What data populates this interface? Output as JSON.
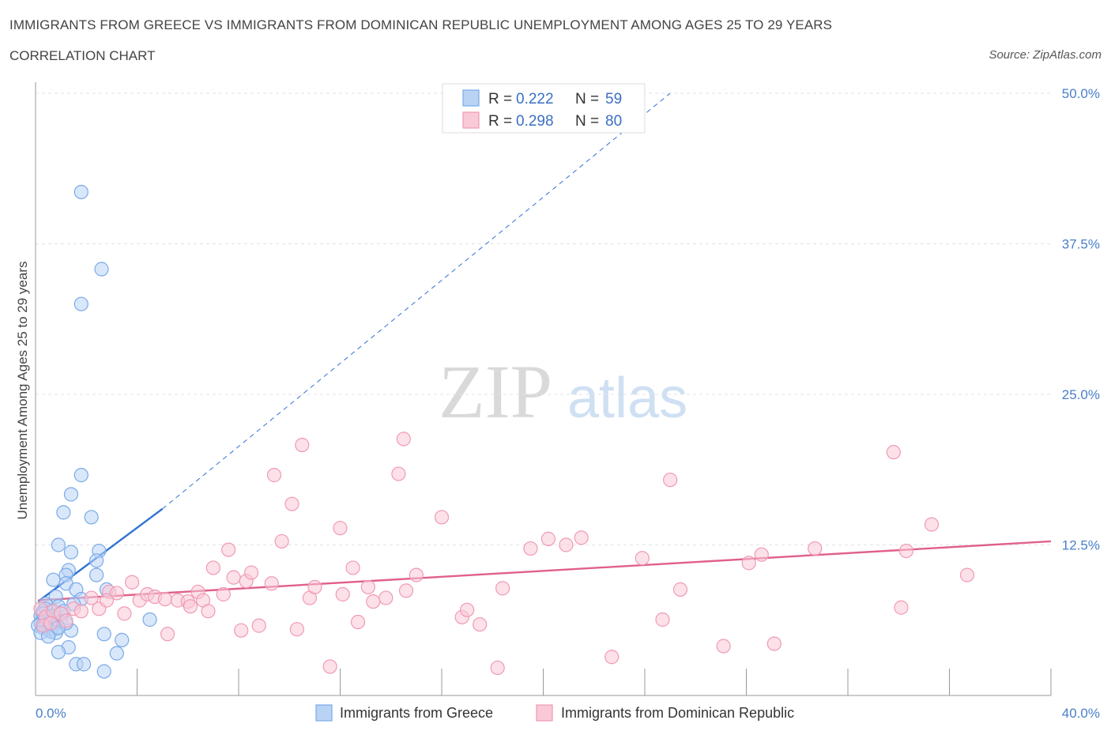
{
  "header": {
    "title": "IMMIGRANTS FROM GREECE VS IMMIGRANTS FROM DOMINICAN REPUBLIC UNEMPLOYMENT AMONG AGES 25 TO 29 YEARS",
    "subtitle": "CORRELATION CHART",
    "source": "Source: ZipAtlas.com"
  },
  "watermark": {
    "zip": "ZIP",
    "atlas": "atlas"
  },
  "legend": {
    "rows": [
      {
        "r_label": "R = ",
        "r_value": "0.222",
        "n_label": "N = ",
        "n_value": "59"
      },
      {
        "r_label": "R = ",
        "r_value": "0.298",
        "n_label": "N = ",
        "n_value": "80"
      }
    ]
  },
  "chart_data": {
    "type": "scatter",
    "title": "IMMIGRANTS FROM GREECE VS IMMIGRANTS FROM DOMINICAN REPUBLIC UNEMPLOYMENT AMONG AGES 25 TO 29 YEARS",
    "xlabel": "",
    "ylabel": "Unemployment Among Ages 25 to 29 years",
    "xlim": [
      0,
      40
    ],
    "ylim": [
      0,
      50
    ],
    "x_tick_labels": [
      "0.0%",
      "40.0%"
    ],
    "y_ticks": [
      12.5,
      25.0,
      37.5,
      50.0
    ],
    "y_tick_labels": [
      "12.5%",
      "25.0%",
      "37.5%",
      "50.0%"
    ],
    "legend_labels": [
      "Immigrants from Greece",
      "Immigrants from Dominican Republic"
    ],
    "series": [
      {
        "name": "Immigrants from Greece",
        "color": "#7aaae8",
        "fill": "#b9d3f5",
        "line_color": "#2f72d4",
        "trend": {
          "x0": 0.1,
          "y0": 7.8,
          "x1": 5.0,
          "y1": 15.5,
          "dash_x1": 25.0,
          "dash_y1": 50.0
        },
        "points": [
          [
            1.8,
            41.8
          ],
          [
            2.6,
            35.4
          ],
          [
            1.8,
            32.5
          ],
          [
            1.8,
            18.3
          ],
          [
            1.4,
            16.7
          ],
          [
            1.1,
            15.2
          ],
          [
            2.2,
            14.8
          ],
          [
            0.9,
            12.5
          ],
          [
            1.4,
            11.9
          ],
          [
            2.5,
            12.0
          ],
          [
            2.4,
            11.2
          ],
          [
            1.3,
            10.4
          ],
          [
            1.2,
            10.0
          ],
          [
            2.4,
            10.0
          ],
          [
            0.7,
            9.6
          ],
          [
            1.2,
            9.3
          ],
          [
            1.6,
            8.8
          ],
          [
            2.8,
            8.8
          ],
          [
            0.8,
            8.2
          ],
          [
            1.8,
            8.0
          ],
          [
            1.5,
            7.6
          ],
          [
            0.4,
            7.6
          ],
          [
            0.9,
            7.4
          ],
          [
            0.3,
            7.0
          ],
          [
            0.6,
            7.0
          ],
          [
            1.0,
            6.8
          ],
          [
            0.2,
            6.6
          ],
          [
            0.5,
            6.5
          ],
          [
            0.8,
            6.4
          ],
          [
            0.3,
            6.3
          ],
          [
            0.6,
            6.2
          ],
          [
            1.0,
            6.1
          ],
          [
            0.2,
            6.0
          ],
          [
            0.4,
            5.9
          ],
          [
            0.7,
            5.8
          ],
          [
            0.1,
            5.8
          ],
          [
            0.9,
            5.7
          ],
          [
            0.3,
            5.6
          ],
          [
            0.5,
            5.5
          ],
          [
            1.4,
            5.4
          ],
          [
            0.6,
            5.3
          ],
          [
            0.8,
            5.2
          ],
          [
            0.2,
            5.2
          ],
          [
            4.5,
            6.3
          ],
          [
            2.7,
            5.1
          ],
          [
            3.4,
            4.6
          ],
          [
            0.5,
            4.9
          ],
          [
            1.3,
            4.0
          ],
          [
            0.9,
            3.6
          ],
          [
            3.2,
            3.5
          ],
          [
            1.6,
            2.6
          ],
          [
            1.9,
            2.6
          ],
          [
            2.7,
            2.0
          ],
          [
            0.4,
            7.2
          ],
          [
            1.1,
            7.0
          ],
          [
            0.7,
            6.6
          ],
          [
            1.2,
            6.0
          ],
          [
            0.3,
            6.8
          ],
          [
            0.9,
            5.6
          ]
        ]
      },
      {
        "name": "Immigrants from Dominican Republic",
        "color": "#f09ab5",
        "fill": "#f9c9d7",
        "line_color": "#e0608a",
        "trend": {
          "x0": 0.1,
          "y0": 7.9,
          "x1": 40.0,
          "y1": 12.8
        },
        "points": [
          [
            0.2,
            7.2
          ],
          [
            0.4,
            6.5
          ],
          [
            0.7,
            7.0
          ],
          [
            1.0,
            6.8
          ],
          [
            0.3,
            5.8
          ],
          [
            0.6,
            6.0
          ],
          [
            1.5,
            7.2
          ],
          [
            1.8,
            7.0
          ],
          [
            2.2,
            8.1
          ],
          [
            2.5,
            7.2
          ],
          [
            2.9,
            8.6
          ],
          [
            3.2,
            8.5
          ],
          [
            3.5,
            6.8
          ],
          [
            3.8,
            9.4
          ],
          [
            4.1,
            7.9
          ],
          [
            4.4,
            8.4
          ],
          [
            4.7,
            8.2
          ],
          [
            5.1,
            8.0
          ],
          [
            5.2,
            5.1
          ],
          [
            5.6,
            7.9
          ],
          [
            6.0,
            7.8
          ],
          [
            6.1,
            7.4
          ],
          [
            6.4,
            8.6
          ],
          [
            6.6,
            7.9
          ],
          [
            6.8,
            7.0
          ],
          [
            7.0,
            10.6
          ],
          [
            7.4,
            8.4
          ],
          [
            7.6,
            12.1
          ],
          [
            7.8,
            9.8
          ],
          [
            8.1,
            5.4
          ],
          [
            8.3,
            9.5
          ],
          [
            8.5,
            10.2
          ],
          [
            8.8,
            5.8
          ],
          [
            9.3,
            9.3
          ],
          [
            9.4,
            18.3
          ],
          [
            9.7,
            12.8
          ],
          [
            10.1,
            15.9
          ],
          [
            10.3,
            5.5
          ],
          [
            10.5,
            20.8
          ],
          [
            10.8,
            8.1
          ],
          [
            11.0,
            9.0
          ],
          [
            11.6,
            2.4
          ],
          [
            12.0,
            13.9
          ],
          [
            12.1,
            8.4
          ],
          [
            12.5,
            10.6
          ],
          [
            12.7,
            6.1
          ],
          [
            13.1,
            9.0
          ],
          [
            13.3,
            7.8
          ],
          [
            13.8,
            8.1
          ],
          [
            14.3,
            18.4
          ],
          [
            14.5,
            21.3
          ],
          [
            14.6,
            8.7
          ],
          [
            15.0,
            10.0
          ],
          [
            16.0,
            14.8
          ],
          [
            16.8,
            6.5
          ],
          [
            17.0,
            7.1
          ],
          [
            17.5,
            5.9
          ],
          [
            18.2,
            2.3
          ],
          [
            18.4,
            8.9
          ],
          [
            19.5,
            12.2
          ],
          [
            20.2,
            13.0
          ],
          [
            20.9,
            12.5
          ],
          [
            21.5,
            13.1
          ],
          [
            22.7,
            3.2
          ],
          [
            23.9,
            11.4
          ],
          [
            24.7,
            6.3
          ],
          [
            25.0,
            17.9
          ],
          [
            25.4,
            8.8
          ],
          [
            27.1,
            4.1
          ],
          [
            28.1,
            11.0
          ],
          [
            28.6,
            11.7
          ],
          [
            29.1,
            4.3
          ],
          [
            30.7,
            12.2
          ],
          [
            33.8,
            20.2
          ],
          [
            34.1,
            7.3
          ],
          [
            34.3,
            12.0
          ],
          [
            35.3,
            14.2
          ],
          [
            36.7,
            10.0
          ],
          [
            1.2,
            6.2
          ],
          [
            2.8,
            7.9
          ]
        ]
      }
    ]
  }
}
